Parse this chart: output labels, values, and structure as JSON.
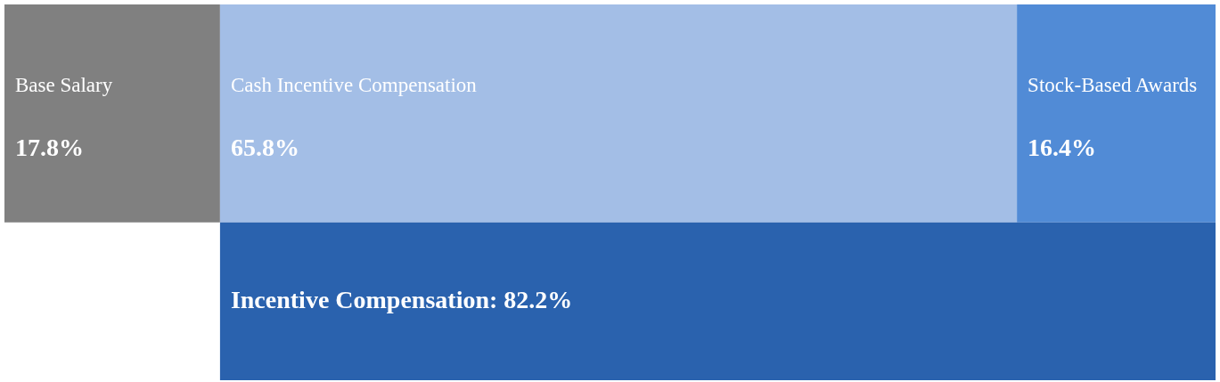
{
  "chart_data": {
    "type": "other",
    "categories": [
      "Base Salary",
      "Cash Incentive Compensation",
      "Stock-Based Awards",
      null
    ],
    "values": [
      17.8,
      65.8,
      16.4,
      82.2
    ],
    "colors": [
      "#808080",
      "#a3bee6",
      "#518bd6",
      "#2a62ae"
    ],
    "value_labels": [
      "17.8%",
      "65.8%",
      "16.4%",
      "Incentive Compensation: 82.2%"
    ]
  }
}
